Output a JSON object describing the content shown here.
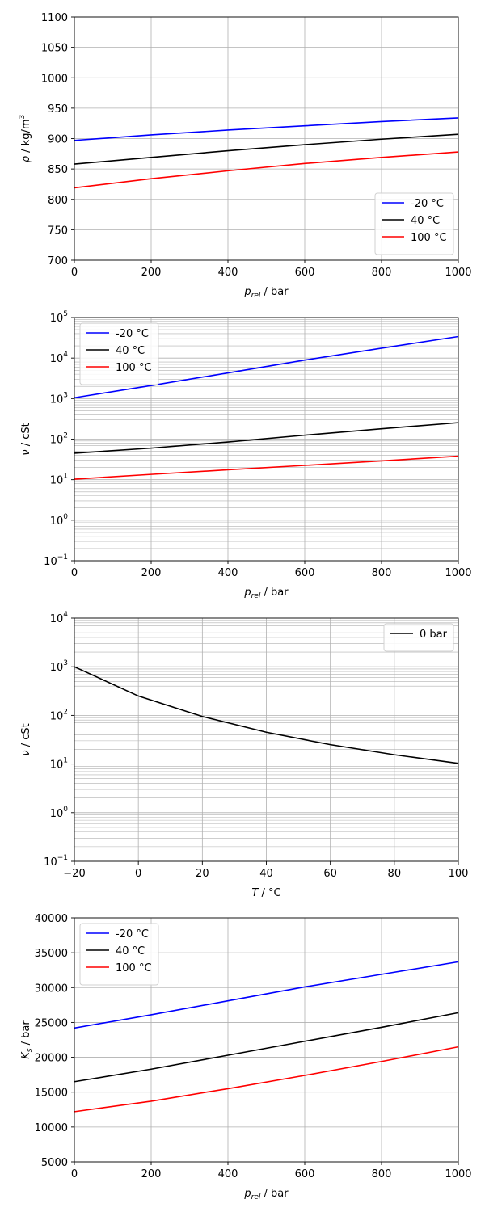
{
  "figure": {
    "background": "#ffffff",
    "series_colors": {
      "-20 °C": "#0000ff",
      "40 °C": "#000000",
      "100 °C": "#ff0000",
      "0 bar": "#000000"
    }
  },
  "chart_data": [
    {
      "type": "line",
      "xlabel_main": "p",
      "xlabel_sub": "rel",
      "xlabel_unit": " / bar",
      "ylabel_main": "ρ",
      "ylabel_unit": " / kg/m",
      "ylabel_sup": "3",
      "xlim": [
        0,
        1000
      ],
      "ylim": [
        700,
        1100
      ],
      "xticks": [
        "0",
        "200",
        "400",
        "600",
        "800",
        "1000"
      ],
      "yticks": [
        "700",
        "750",
        "800",
        "850",
        "900",
        "950",
        "1000",
        "1050",
        "1100"
      ],
      "yscale": "linear",
      "grid": true,
      "legend_position": "lower-right",
      "series": [
        {
          "name": "-20 °C",
          "color": "#0000ff",
          "x": [
            0,
            200,
            400,
            600,
            800,
            1000
          ],
          "y": [
            897,
            906,
            914,
            921,
            928,
            934
          ]
        },
        {
          "name": "40 °C",
          "color": "#000000",
          "x": [
            0,
            200,
            400,
            600,
            800,
            1000
          ],
          "y": [
            858,
            869,
            880,
            890,
            899,
            907
          ]
        },
        {
          "name": "100 °C",
          "color": "#ff0000",
          "x": [
            0,
            200,
            400,
            600,
            800,
            1000
          ],
          "y": [
            819,
            834,
            847,
            859,
            869,
            878
          ]
        }
      ]
    },
    {
      "type": "line",
      "xlabel_main": "p",
      "xlabel_sub": "rel",
      "xlabel_unit": " / bar",
      "ylabel_main": "ν",
      "ylabel_unit": " / cSt",
      "xlim": [
        0,
        1000
      ],
      "ylim": [
        0.1,
        100000
      ],
      "xticks": [
        "0",
        "200",
        "400",
        "600",
        "800",
        "1000"
      ],
      "yticks_exp": [
        "−1",
        "0",
        "1",
        "2",
        "3",
        "4",
        "5"
      ],
      "yscale": "log",
      "grid": true,
      "legend_position": "upper-left",
      "series": [
        {
          "name": "-20 °C",
          "color": "#0000ff",
          "x": [
            0,
            200,
            400,
            600,
            800,
            1000
          ],
          "y": [
            1050,
            2100,
            4300,
            8900,
            17500,
            34000
          ]
        },
        {
          "name": "40 °C",
          "color": "#000000",
          "x": [
            0,
            200,
            400,
            600,
            800,
            1000
          ],
          "y": [
            45,
            60,
            85,
            125,
            180,
            255
          ]
        },
        {
          "name": "100 °C",
          "color": "#ff0000",
          "x": [
            0,
            200,
            400,
            600,
            800,
            1000
          ],
          "y": [
            10.3,
            13.5,
            17.5,
            22.5,
            29,
            38
          ]
        }
      ]
    },
    {
      "type": "line",
      "xlabel_main": "T",
      "xlabel_unit": " / °C",
      "ylabel_main": "ν",
      "ylabel_unit": " / cSt",
      "xlim": [
        -20,
        100
      ],
      "ylim": [
        0.1,
        10000
      ],
      "xticks": [
        "−20",
        "0",
        "20",
        "40",
        "60",
        "80",
        "100"
      ],
      "yticks_exp": [
        "−1",
        "0",
        "1",
        "2",
        "3",
        "4"
      ],
      "yscale": "log",
      "grid": true,
      "legend_position": "upper-right",
      "series": [
        {
          "name": "0 bar",
          "color": "#000000",
          "x": [
            -20,
            0,
            20,
            40,
            60,
            80,
            100
          ],
          "y": [
            1000,
            250,
            95,
            45,
            25,
            15.5,
            10.3
          ]
        }
      ]
    },
    {
      "type": "line",
      "xlabel_main": "p",
      "xlabel_sub": "rel",
      "xlabel_unit": " / bar",
      "ylabel_main": "K",
      "ylabel_sub": "s",
      "ylabel_unit": " / bar",
      "xlim": [
        0,
        1000
      ],
      "ylim": [
        5000,
        40000
      ],
      "xticks": [
        "0",
        "200",
        "400",
        "600",
        "800",
        "1000"
      ],
      "yticks": [
        "5000",
        "10000",
        "15000",
        "20000",
        "25000",
        "30000",
        "35000",
        "40000"
      ],
      "yscale": "linear",
      "grid": true,
      "legend_position": "upper-left",
      "series": [
        {
          "name": "-20 °C",
          "color": "#0000ff",
          "x": [
            0,
            200,
            400,
            600,
            800,
            1000
          ],
          "y": [
            24200,
            26100,
            28100,
            30100,
            31900,
            33700
          ]
        },
        {
          "name": "40 °C",
          "color": "#000000",
          "x": [
            0,
            200,
            400,
            600,
            800,
            1000
          ],
          "y": [
            16500,
            18300,
            20300,
            22300,
            24300,
            26400
          ]
        },
        {
          "name": "100 °C",
          "color": "#ff0000",
          "x": [
            0,
            200,
            400,
            600,
            800,
            1000
          ],
          "y": [
            12200,
            13700,
            15500,
            17400,
            19400,
            21500
          ]
        }
      ]
    }
  ]
}
